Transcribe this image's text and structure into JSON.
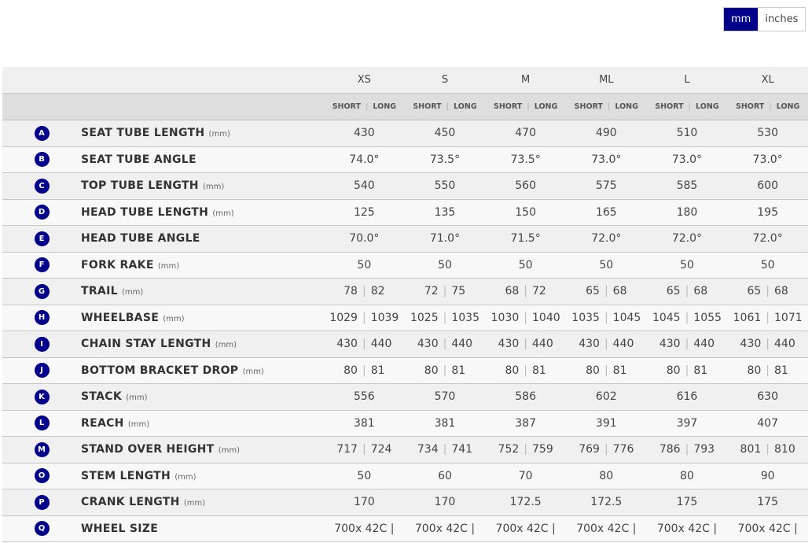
{
  "units_toggle": {
    "options": [
      "mm",
      "inches"
    ],
    "selected": "mm"
  },
  "colors": {
    "accent": "#00008b"
  },
  "sizes": [
    "XS",
    "S",
    "M",
    "ML",
    "L",
    "XL"
  ],
  "subheader": {
    "short": "SHORT",
    "long": "LONG"
  },
  "rows": [
    {
      "badge": "A",
      "label": "SEAT TUBE LENGTH",
      "unit": "(mm)",
      "values": [
        [
          "430"
        ],
        [
          "450"
        ],
        [
          "470"
        ],
        [
          "490"
        ],
        [
          "510"
        ],
        [
          "530"
        ]
      ]
    },
    {
      "badge": "B",
      "label": "SEAT TUBE ANGLE",
      "unit": "",
      "values": [
        [
          "74.0°"
        ],
        [
          "73.5°"
        ],
        [
          "73.5°"
        ],
        [
          "73.0°"
        ],
        [
          "73.0°"
        ],
        [
          "73.0°"
        ]
      ]
    },
    {
      "badge": "C",
      "label": "TOP TUBE LENGTH",
      "unit": "(mm)",
      "values": [
        [
          "540"
        ],
        [
          "550"
        ],
        [
          "560"
        ],
        [
          "575"
        ],
        [
          "585"
        ],
        [
          "600"
        ]
      ]
    },
    {
      "badge": "D",
      "label": "HEAD TUBE LENGTH",
      "unit": "(mm)",
      "values": [
        [
          "125"
        ],
        [
          "135"
        ],
        [
          "150"
        ],
        [
          "165"
        ],
        [
          "180"
        ],
        [
          "195"
        ]
      ]
    },
    {
      "badge": "E",
      "label": "HEAD TUBE ANGLE",
      "unit": "",
      "values": [
        [
          "70.0°"
        ],
        [
          "71.0°"
        ],
        [
          "71.5°"
        ],
        [
          "72.0°"
        ],
        [
          "72.0°"
        ],
        [
          "72.0°"
        ]
      ]
    },
    {
      "badge": "F",
      "label": "FORK RAKE",
      "unit": "(mm)",
      "values": [
        [
          "50"
        ],
        [
          "50"
        ],
        [
          "50"
        ],
        [
          "50"
        ],
        [
          "50"
        ],
        [
          "50"
        ]
      ]
    },
    {
      "badge": "G",
      "label": "TRAIL",
      "unit": "(mm)",
      "values": [
        [
          "78",
          "82"
        ],
        [
          "72",
          "75"
        ],
        [
          "68",
          "72"
        ],
        [
          "65",
          "68"
        ],
        [
          "65",
          "68"
        ],
        [
          "65",
          "68"
        ]
      ]
    },
    {
      "badge": "H",
      "label": "WHEELBASE",
      "unit": "(mm)",
      "values": [
        [
          "1029",
          "1039"
        ],
        [
          "1025",
          "1035"
        ],
        [
          "1030",
          "1040"
        ],
        [
          "1035",
          "1045"
        ],
        [
          "1045",
          "1055"
        ],
        [
          "1061",
          "1071"
        ]
      ]
    },
    {
      "badge": "I",
      "label": "CHAIN STAY LENGTH",
      "unit": "(mm)",
      "values": [
        [
          "430",
          "440"
        ],
        [
          "430",
          "440"
        ],
        [
          "430",
          "440"
        ],
        [
          "430",
          "440"
        ],
        [
          "430",
          "440"
        ],
        [
          "430",
          "440"
        ]
      ]
    },
    {
      "badge": "J",
      "label": "BOTTOM BRACKET DROP",
      "unit": "(mm)",
      "values": [
        [
          "80",
          "81"
        ],
        [
          "80",
          "81"
        ],
        [
          "80",
          "81"
        ],
        [
          "80",
          "81"
        ],
        [
          "80",
          "81"
        ],
        [
          "80",
          "81"
        ]
      ]
    },
    {
      "badge": "K",
      "label": "STACK",
      "unit": "(mm)",
      "values": [
        [
          "556"
        ],
        [
          "570"
        ],
        [
          "586"
        ],
        [
          "602"
        ],
        [
          "616"
        ],
        [
          "630"
        ]
      ]
    },
    {
      "badge": "L",
      "label": "REACH",
      "unit": "(mm)",
      "values": [
        [
          "381"
        ],
        [
          "381"
        ],
        [
          "387"
        ],
        [
          "391"
        ],
        [
          "397"
        ],
        [
          "407"
        ]
      ]
    },
    {
      "badge": "M",
      "label": "STAND OVER HEIGHT",
      "unit": "(mm)",
      "values": [
        [
          "717",
          "724"
        ],
        [
          "734",
          "741"
        ],
        [
          "752",
          "759"
        ],
        [
          "769",
          "776"
        ],
        [
          "786",
          "793"
        ],
        [
          "801",
          "810"
        ]
      ]
    },
    {
      "badge": "O",
      "label": "STEM LENGTH",
      "unit": "(mm)",
      "values": [
        [
          "50"
        ],
        [
          "60"
        ],
        [
          "70"
        ],
        [
          "80"
        ],
        [
          "80"
        ],
        [
          "90"
        ]
      ]
    },
    {
      "badge": "P",
      "label": "CRANK LENGTH",
      "unit": "(mm)",
      "values": [
        [
          "170"
        ],
        [
          "170"
        ],
        [
          "172.5"
        ],
        [
          "172.5"
        ],
        [
          "175"
        ],
        [
          "175"
        ]
      ]
    },
    {
      "badge": "Q",
      "label": "WHEEL SIZE",
      "unit": "",
      "values": [
        [
          "700x 42C |"
        ],
        [
          "700x 42C |"
        ],
        [
          "700x 42C |"
        ],
        [
          "700x 42C |"
        ],
        [
          "700x 42C |"
        ],
        [
          "700x 42C |"
        ]
      ]
    }
  ]
}
